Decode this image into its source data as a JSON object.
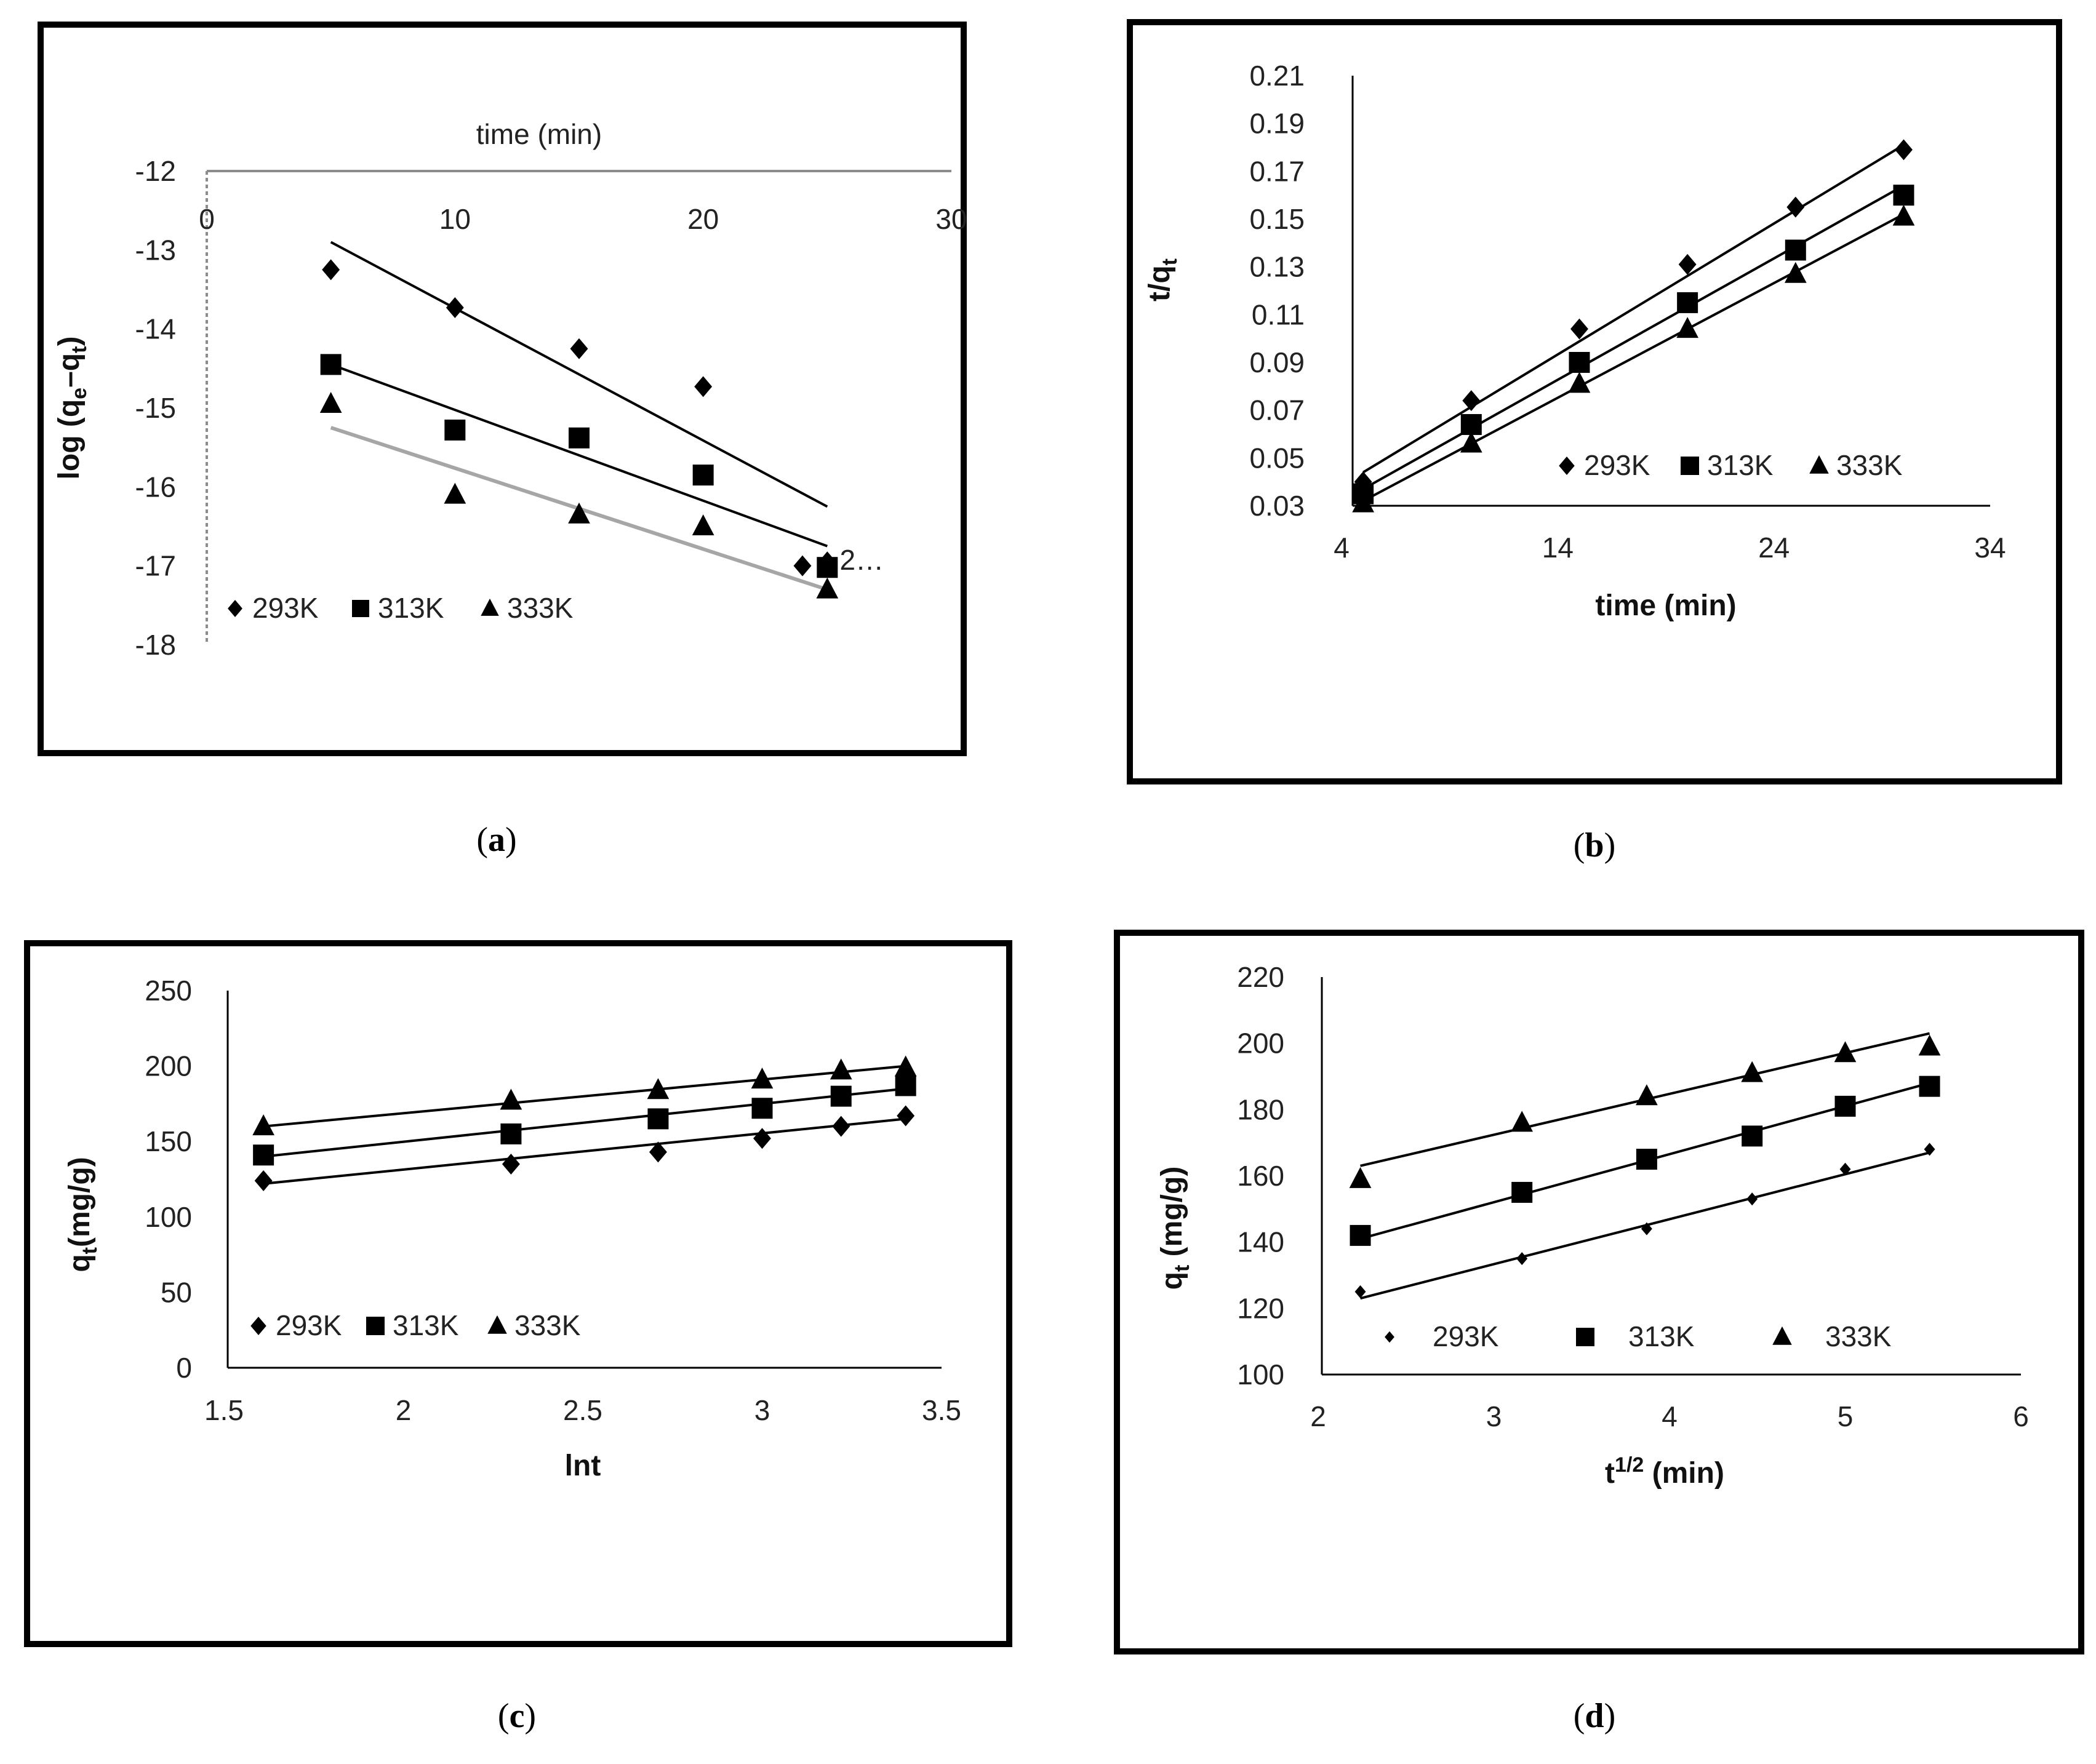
{
  "chart_data": [
    {
      "panel": "a",
      "type": "scatter",
      "caption": "a",
      "xlabel": "time (min)",
      "ylabel": "log (q",
      "ylabel_sub1": "e",
      "ylabel_dash": "–q",
      "ylabel_sub2": "t",
      "ylabel_close": ")",
      "xlim": [
        0,
        30
      ],
      "ylim": [
        -18,
        -12
      ],
      "xticks": [
        "0",
        "10",
        "20",
        "30"
      ],
      "yticks": [
        "-12",
        "-13",
        "-14",
        "-15",
        "-16",
        "-17",
        "-18"
      ],
      "series": [
        {
          "name": "293K",
          "marker": "diamond",
          "line_color": "#000000",
          "x": [
            5,
            10,
            15,
            20,
            24,
            25
          ],
          "y": [
            -13.25,
            -13.73,
            -14.25,
            -14.73,
            -17.0,
            -16.95
          ],
          "fit": [
            [
              5,
              -12.9
            ],
            [
              25,
              -16.25
            ]
          ]
        },
        {
          "name": "313K",
          "marker": "square",
          "line_color": "#000000",
          "x": [
            5,
            10,
            15,
            20,
            25
          ],
          "y": [
            -14.45,
            -15.28,
            -15.38,
            -15.85,
            -17.02
          ],
          "fit": [
            [
              5,
              -14.45
            ],
            [
              25,
              -16.75
            ]
          ]
        },
        {
          "name": "333K",
          "marker": "triangle",
          "line_color": "#a6a6a6",
          "x": [
            5,
            10,
            15,
            20,
            25
          ],
          "y": [
            -14.95,
            -16.1,
            -16.35,
            -16.5,
            -17.3
          ],
          "fit": [
            [
              5,
              -15.25
            ],
            [
              25,
              -17.3
            ]
          ]
        }
      ],
      "overflow_label": "2…"
    },
    {
      "panel": "b",
      "type": "scatter",
      "caption": "b",
      "xlabel": "time (min)",
      "ylabel": "t/q",
      "ylabel_sub1": "t",
      "xlim": [
        4,
        34
      ],
      "ylim": [
        0.03,
        0.21
      ],
      "xticks": [
        "4",
        "14",
        "24",
        "34"
      ],
      "yticks": [
        "0.21",
        "0.19",
        "0.17",
        "0.15",
        "0.13",
        "0.11",
        "0.09",
        "0.07",
        "0.05",
        "0.03"
      ],
      "series": [
        {
          "name": "293K",
          "marker": "diamond",
          "line_color": "#000000",
          "x": [
            5,
            10,
            15,
            20,
            25,
            30
          ],
          "y": [
            0.04,
            0.074,
            0.104,
            0.131,
            0.155,
            0.179
          ],
          "fit": [
            [
              5,
              0.044
            ],
            [
              30,
              0.181
            ]
          ]
        },
        {
          "name": "313K",
          "marker": "square",
          "line_color": "#000000",
          "x": [
            5,
            10,
            15,
            20,
            25,
            30
          ],
          "y": [
            0.035,
            0.064,
            0.09,
            0.115,
            0.137,
            0.16
          ],
          "fit": [
            [
              5,
              0.037
            ],
            [
              30,
              0.164
            ]
          ]
        },
        {
          "name": "333K",
          "marker": "triangle",
          "line_color": "#000000",
          "x": [
            5,
            10,
            15,
            20,
            25,
            30
          ],
          "y": [
            0.031,
            0.056,
            0.081,
            0.104,
            0.127,
            0.151
          ],
          "fit": [
            [
              5,
              0.032
            ],
            [
              30,
              0.152
            ]
          ]
        }
      ]
    },
    {
      "panel": "c",
      "type": "scatter",
      "caption": "c",
      "xlabel": "lnt",
      "ylabel": "q",
      "ylabel_sub1": "t",
      "ylabel_close": "(mg/g)",
      "xlim": [
        1.5,
        3.5
      ],
      "ylim": [
        0,
        250
      ],
      "xticks": [
        "1.5",
        "2",
        "2.5",
        "3",
        "3.5"
      ],
      "yticks": [
        "250",
        "200",
        "150",
        "100",
        "50",
        "0"
      ],
      "series": [
        {
          "name": "293K",
          "marker": "diamond",
          "line_color": "#000000",
          "x": [
            1.61,
            2.3,
            2.71,
            3.0,
            3.22,
            3.4
          ],
          "y": [
            124,
            135,
            143,
            152,
            160,
            167
          ],
          "fit": [
            [
              1.61,
              122
            ],
            [
              3.4,
              165
            ]
          ]
        },
        {
          "name": "313K",
          "marker": "square",
          "line_color": "#000000",
          "x": [
            1.61,
            2.3,
            2.71,
            3.0,
            3.22,
            3.4
          ],
          "y": [
            141,
            155,
            165,
            172,
            180,
            187
          ],
          "fit": [
            [
              1.61,
              140
            ],
            [
              3.4,
              185
            ]
          ]
        },
        {
          "name": "333K",
          "marker": "triangle",
          "line_color": "#000000",
          "x": [
            1.61,
            2.3,
            2.71,
            3.0,
            3.22,
            3.4
          ],
          "y": [
            160,
            177,
            184,
            191,
            197,
            199
          ],
          "fit": [
            [
              1.61,
              160
            ],
            [
              3.4,
              200
            ]
          ]
        }
      ]
    },
    {
      "panel": "d",
      "type": "scatter",
      "caption": "d",
      "xlabel": "t",
      "xlabel_sup": "1/2",
      "xlabel_tail": " (min)",
      "ylabel": "q",
      "ylabel_sub1": "t",
      "ylabel_close": " (mg/g)",
      "xlim": [
        2,
        6
      ],
      "ylim": [
        100,
        220
      ],
      "xticks": [
        "2",
        "3",
        "4",
        "5",
        "6"
      ],
      "yticks": [
        "220",
        "200",
        "180",
        "160",
        "140",
        "120",
        "100"
      ],
      "series": [
        {
          "name": "293K",
          "marker": "diamond-small",
          "line_color": "#000000",
          "x": [
            2.24,
            3.16,
            3.87,
            4.47,
            5.0,
            5.48
          ],
          "y": [
            125,
            135,
            144,
            153,
            162,
            168
          ],
          "fit": [
            [
              2.24,
              123
            ],
            [
              5.48,
              167
            ]
          ]
        },
        {
          "name": "313K",
          "marker": "square",
          "line_color": "#000000",
          "x": [
            2.24,
            3.16,
            3.87,
            4.47,
            5.0,
            5.48
          ],
          "y": [
            142,
            155,
            165,
            172,
            181,
            187
          ],
          "fit": [
            [
              2.24,
              141
            ],
            [
              5.48,
              188
            ]
          ]
        },
        {
          "name": "333K",
          "marker": "triangle",
          "line_color": "#000000",
          "x": [
            2.24,
            3.16,
            3.87,
            4.47,
            5.0,
            5.48
          ],
          "y": [
            159,
            176,
            184,
            191,
            197,
            199
          ],
          "fit": [
            [
              2.24,
              163
            ],
            [
              5.48,
              203
            ]
          ]
        }
      ]
    }
  ]
}
